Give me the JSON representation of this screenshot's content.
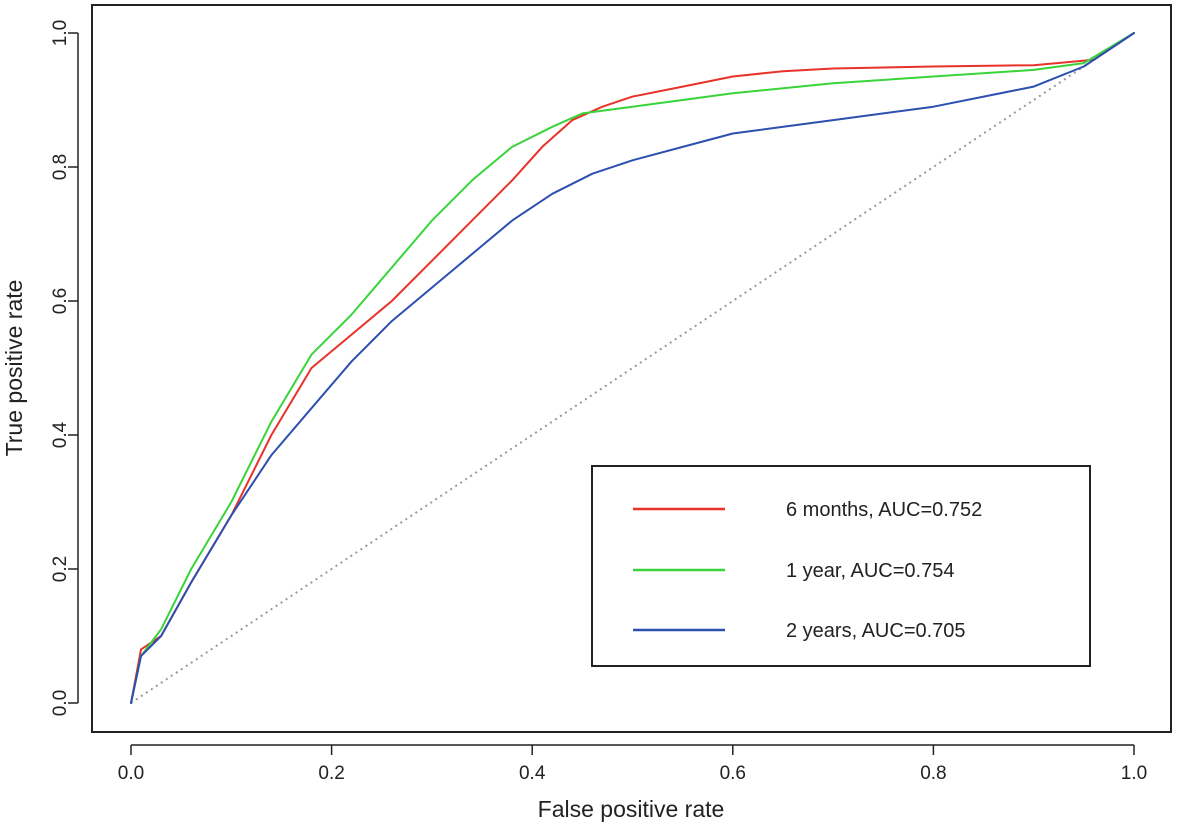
{
  "chart_data": {
    "type": "line",
    "title": "",
    "xlabel": "False positive rate",
    "ylabel": "True positive rate",
    "xlim": [
      0,
      1
    ],
    "ylim": [
      0,
      1
    ],
    "xticks": [
      "0.0",
      "0.2",
      "0.4",
      "0.6",
      "0.8",
      "1.0"
    ],
    "yticks": [
      "0.0",
      "0.2",
      "0.4",
      "0.6",
      "0.8",
      "1.0"
    ],
    "grid": false,
    "legend_position": "bottom-right",
    "reference_line": {
      "name": "chance",
      "color": "#999999",
      "style": "dotted",
      "x": [
        0,
        1
      ],
      "y": [
        0,
        1
      ]
    },
    "series": [
      {
        "name": "6 months, AUC=0.752",
        "color": "#e8322a",
        "x": [
          0,
          0.01,
          0.03,
          0.06,
          0.1,
          0.14,
          0.18,
          0.22,
          0.26,
          0.3,
          0.34,
          0.38,
          0.41,
          0.44,
          0.47,
          0.5,
          0.55,
          0.6,
          0.65,
          0.7,
          0.8,
          0.9,
          0.96,
          1.0
        ],
        "y": [
          0,
          0.08,
          0.1,
          0.18,
          0.28,
          0.4,
          0.5,
          0.55,
          0.6,
          0.66,
          0.72,
          0.78,
          0.83,
          0.87,
          0.89,
          0.905,
          0.92,
          0.935,
          0.943,
          0.947,
          0.95,
          0.952,
          0.96,
          1.0
        ]
      },
      {
        "name": "1 year, AUC=0.754",
        "color": "#38d43a",
        "x": [
          0,
          0.01,
          0.03,
          0.06,
          0.1,
          0.14,
          0.18,
          0.22,
          0.26,
          0.3,
          0.34,
          0.38,
          0.42,
          0.45,
          0.5,
          0.55,
          0.6,
          0.7,
          0.8,
          0.9,
          0.95,
          1.0
        ],
        "y": [
          0,
          0.07,
          0.11,
          0.2,
          0.3,
          0.42,
          0.52,
          0.58,
          0.65,
          0.72,
          0.78,
          0.83,
          0.86,
          0.88,
          0.89,
          0.9,
          0.91,
          0.925,
          0.935,
          0.945,
          0.955,
          1.0
        ]
      },
      {
        "name": "2 years, AUC=0.705",
        "color": "#2c4fb0",
        "x": [
          0,
          0.01,
          0.03,
          0.06,
          0.1,
          0.14,
          0.18,
          0.22,
          0.26,
          0.3,
          0.34,
          0.38,
          0.42,
          0.46,
          0.5,
          0.55,
          0.6,
          0.7,
          0.8,
          0.9,
          0.95,
          1.0
        ],
        "y": [
          0,
          0.07,
          0.1,
          0.18,
          0.28,
          0.37,
          0.44,
          0.51,
          0.57,
          0.62,
          0.67,
          0.72,
          0.76,
          0.79,
          0.81,
          0.83,
          0.85,
          0.87,
          0.89,
          0.92,
          0.95,
          1.0
        ]
      }
    ]
  }
}
